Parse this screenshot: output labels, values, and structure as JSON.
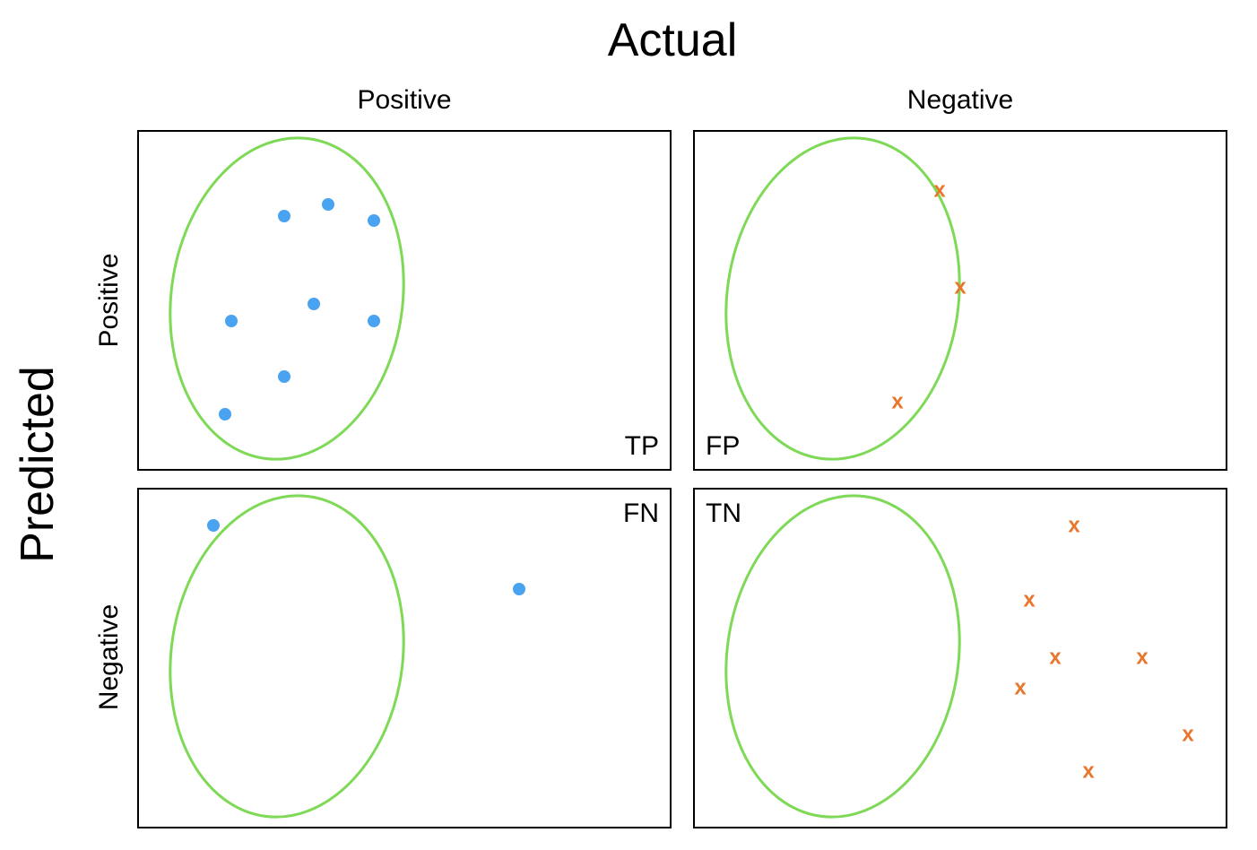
{
  "title": "Actual",
  "y_title": "Predicted",
  "columns": [
    "Positive",
    "Negative"
  ],
  "rows": [
    "Positive",
    "Negative"
  ],
  "colors": {
    "region": "#7ed957",
    "positive_point": "#4aa3f0",
    "negative_point": "#e8762d"
  },
  "markers": {
    "negative_glyph": "x"
  },
  "cells": [
    {
      "label": "TP",
      "positives": [
        [
          162,
          94
        ],
        [
          211,
          81
        ],
        [
          262,
          99
        ],
        [
          103,
          211
        ],
        [
          195,
          192
        ],
        [
          262,
          211
        ],
        [
          162,
          273
        ],
        [
          96,
          315
        ]
      ],
      "negatives": []
    },
    {
      "label": "FP",
      "positives": [],
      "negatives": [
        [
          273,
          65
        ],
        [
          296,
          173
        ],
        [
          226,
          301
        ]
      ]
    },
    {
      "label": "FN",
      "positives": [
        [
          83,
          40
        ],
        [
          424,
          111
        ]
      ],
      "negatives": []
    },
    {
      "label": "TN",
      "positives": [],
      "negatives": [
        [
          423,
          40
        ],
        [
          373,
          123
        ],
        [
          402,
          187
        ],
        [
          499,
          187
        ],
        [
          363,
          221
        ],
        [
          550,
          273
        ],
        [
          439,
          314
        ]
      ]
    }
  ]
}
